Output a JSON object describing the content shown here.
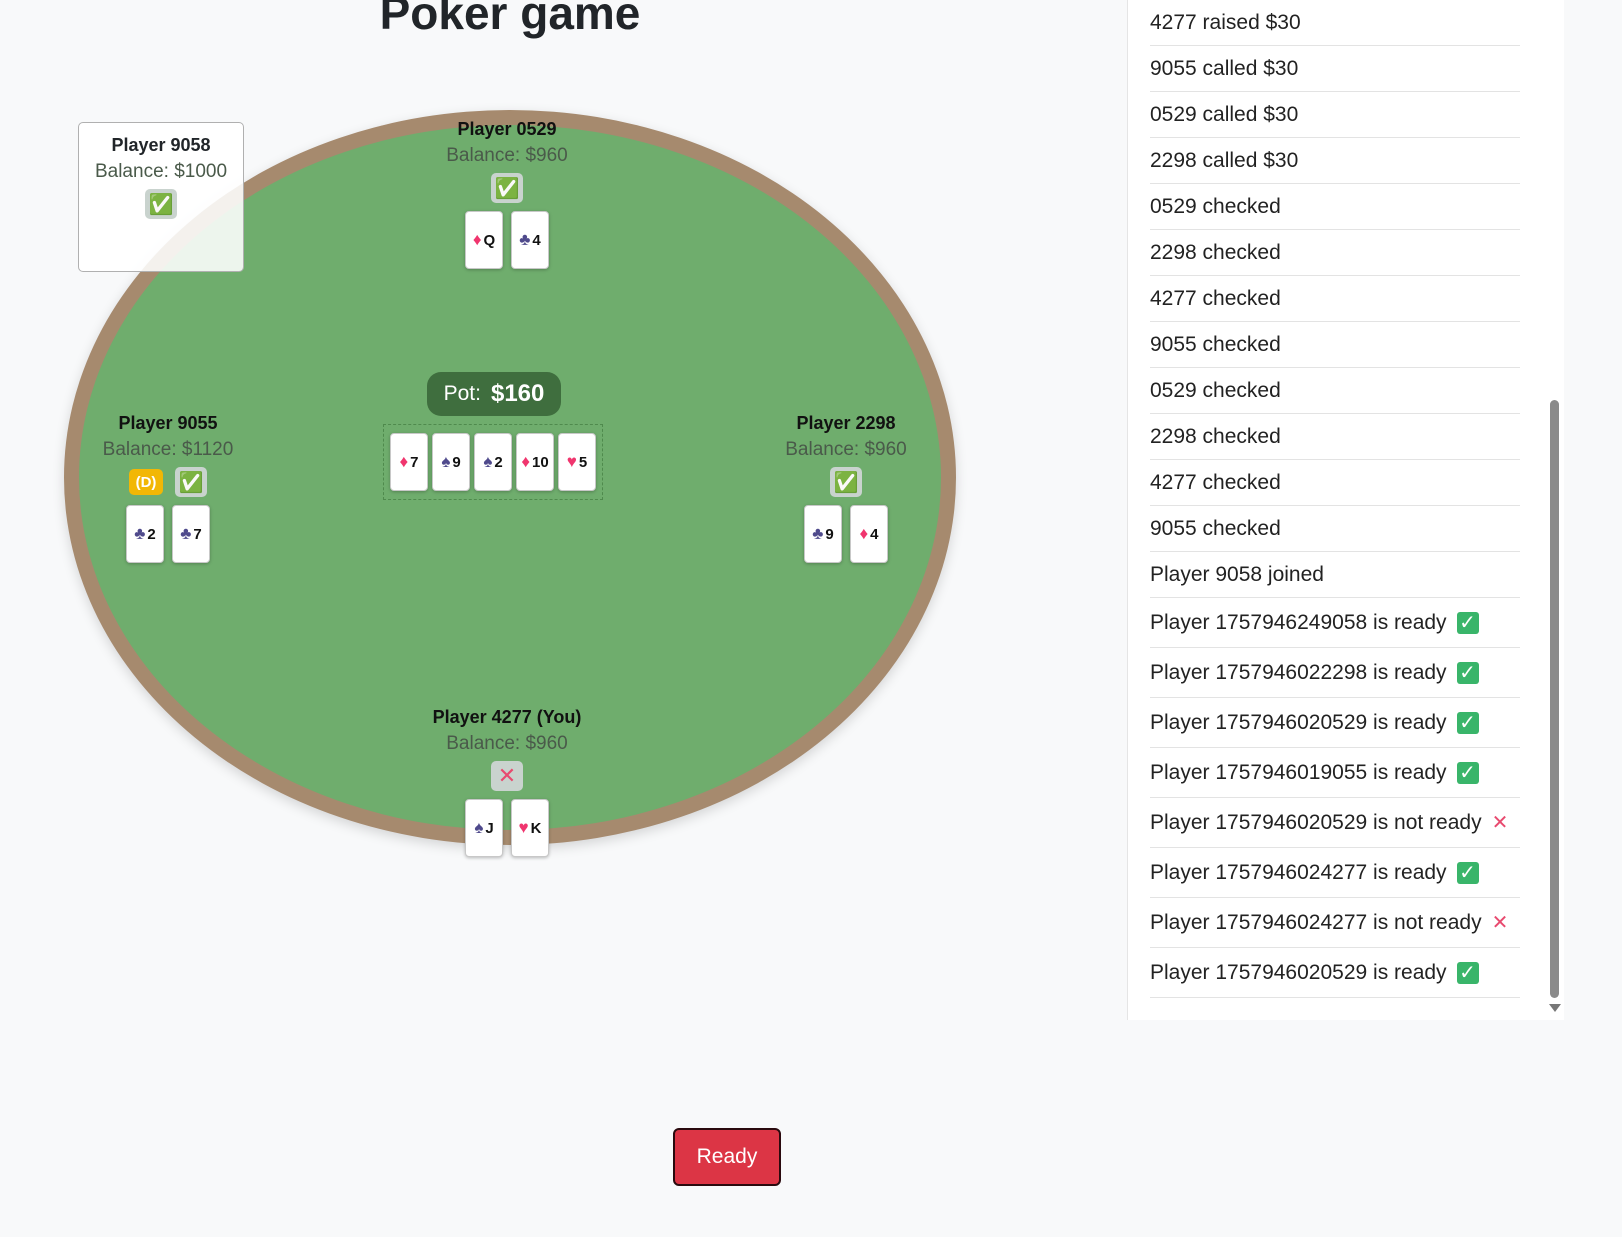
{
  "title": "Poker game",
  "pot": {
    "label": "Pot:",
    "value": "$160"
  },
  "board": [
    {
      "suit": "♦",
      "color": "red",
      "rank": "7"
    },
    {
      "suit": "♠",
      "color": "black",
      "rank": "9"
    },
    {
      "suit": "♠",
      "color": "black",
      "rank": "2"
    },
    {
      "suit": "♦",
      "color": "red",
      "rank": "10"
    },
    {
      "suit": "♥",
      "color": "red",
      "rank": "5"
    }
  ],
  "players": {
    "p9058": {
      "name": "Player 9058",
      "balance": "Balance: $1000",
      "status": "ok"
    },
    "p0529": {
      "name": "Player 0529",
      "balance": "Balance: $960",
      "status": "ok",
      "cards": [
        {
          "suit": "♦",
          "color": "red",
          "rank": "Q"
        },
        {
          "suit": "♣",
          "color": "black",
          "rank": "4"
        }
      ]
    },
    "p9055": {
      "name": "Player 9055",
      "balance": "Balance: $1120",
      "status": "ok",
      "dealer": "(D)",
      "cards": [
        {
          "suit": "♣",
          "color": "black",
          "rank": "2"
        },
        {
          "suit": "♣",
          "color": "black",
          "rank": "7"
        }
      ]
    },
    "p2298": {
      "name": "Player 2298",
      "balance": "Balance: $960",
      "status": "ok",
      "cards": [
        {
          "suit": "♣",
          "color": "black",
          "rank": "9"
        },
        {
          "suit": "♦",
          "color": "red",
          "rank": "4"
        }
      ]
    },
    "p4277": {
      "name": "Player 4277 (You)",
      "balance": "Balance: $960",
      "status": "no",
      "cards": [
        {
          "suit": "♠",
          "color": "black",
          "rank": "J"
        },
        {
          "suit": "♥",
          "color": "red",
          "rank": "K"
        }
      ]
    }
  },
  "log": [
    {
      "text": "4277 raised $30"
    },
    {
      "text": "9055 called $30"
    },
    {
      "text": "0529 called $30"
    },
    {
      "text": "2298 called $30"
    },
    {
      "text": "0529 checked"
    },
    {
      "text": "2298 checked"
    },
    {
      "text": "4277 checked"
    },
    {
      "text": "9055 checked"
    },
    {
      "text": "0529 checked"
    },
    {
      "text": "2298 checked"
    },
    {
      "text": "4277 checked"
    },
    {
      "text": "9055 checked"
    },
    {
      "text": "Player 9058 joined"
    },
    {
      "text": "Player 1757946249058 is ready",
      "icon": "ok"
    },
    {
      "text": "Player 1757946022298 is ready",
      "icon": "ok"
    },
    {
      "text": "Player 1757946020529 is ready",
      "icon": "ok"
    },
    {
      "text": "Player 1757946019055 is ready",
      "icon": "ok"
    },
    {
      "text": "Player 1757946020529 is not ready",
      "icon": "no"
    },
    {
      "text": "Player 1757946024277 is ready",
      "icon": "ok"
    },
    {
      "text": "Player 1757946024277 is not ready",
      "icon": "no"
    },
    {
      "text": "Player 1757946020529 is ready",
      "icon": "ok"
    }
  ],
  "ready_button": "Ready"
}
